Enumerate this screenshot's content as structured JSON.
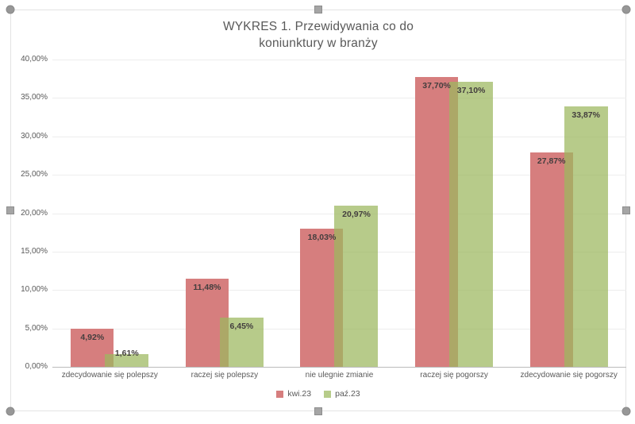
{
  "title": {
    "line1": "WYKRES 1. Przewidywania co do",
    "line2": "koniunktury w branży"
  },
  "chart_data": {
    "type": "bar",
    "title": "WYKRES 1. Przewidywania co do koniunktury w branży",
    "categories": [
      "zdecydowanie się polepszy",
      "raczej się polepszy",
      "nie ulegnie zmianie",
      "raczej się pogorszy",
      "zdecydowanie się pogorszy"
    ],
    "series": [
      {
        "name": "kwi.23",
        "color": "#d67e7e",
        "values": [
          4.92,
          11.48,
          18.03,
          37.7,
          27.87
        ],
        "labels": [
          "4,92%",
          "11,48%",
          "18,03%",
          "37,70%",
          "27,87%"
        ]
      },
      {
        "name": "paź.23",
        "color": "#b7cc8a",
        "color_rgba": "rgba(156,184,95,0.73)",
        "values": [
          1.61,
          6.45,
          20.97,
          37.1,
          33.87
        ],
        "labels": [
          "1,61%",
          "6,45%",
          "20,97%",
          "37,10%",
          "33,87%"
        ]
      }
    ],
    "overlap_color": "#aba063",
    "ylim": [
      0,
      40
    ],
    "yticks": [
      {
        "value": 0,
        "label": "0,00%"
      },
      {
        "value": 5,
        "label": "5,00%"
      },
      {
        "value": 10,
        "label": "10,00%"
      },
      {
        "value": 15,
        "label": "15,00%"
      },
      {
        "value": 20,
        "label": "20,00%"
      },
      {
        "value": 25,
        "label": "25,00%"
      },
      {
        "value": 30,
        "label": "30,00%"
      },
      {
        "value": 35,
        "label": "35,00%"
      },
      {
        "value": 40,
        "label": "40,00%"
      }
    ],
    "grid": true,
    "legend_position": "bottom"
  },
  "selection": {
    "handle_color": "#979797",
    "frame_border_color": "#e3e3e3"
  }
}
